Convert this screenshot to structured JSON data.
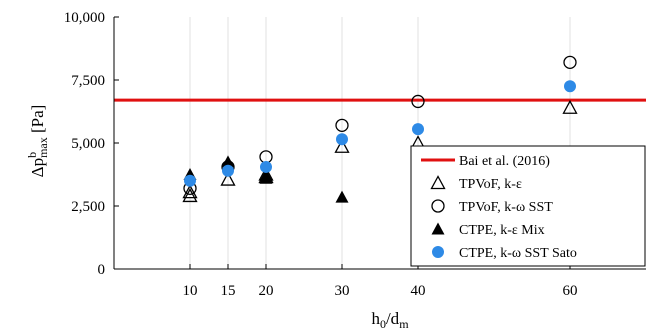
{
  "chart_data": {
    "type": "scatter",
    "xlabel": {
      "main": "h",
      "sub1": "0",
      "mid": "/d",
      "sub2": "m"
    },
    "ylabel": {
      "main": "Δp",
      "sup": "b",
      "sub": "max",
      "unit": " [Pa]"
    },
    "xlim": [
      0,
      70
    ],
    "ylim": [
      0,
      10000
    ],
    "x_ticks": [
      10,
      15,
      20,
      30,
      40,
      60
    ],
    "y_ticks": [
      0,
      2500,
      5000,
      7500,
      10000
    ],
    "y_tick_labels": [
      "0",
      "2,500",
      "5,000",
      "7,500",
      "10,000"
    ],
    "grid": "vertical",
    "legend_position": "bottom-right",
    "reference_lines": [
      {
        "name": "Bai et al. (2016)",
        "y": 6700,
        "color": "#e01010"
      }
    ],
    "series": [
      {
        "name": "TPVoF, k-ε",
        "marker": "triangle-open",
        "color": "#000000",
        "x": [
          10,
          10,
          15,
          20,
          20,
          30,
          40,
          60
        ],
        "y": [
          2900,
          3050,
          3550,
          3650,
          3750,
          4850,
          5000,
          6400
        ]
      },
      {
        "name": "TPVoF, k-ω SST",
        "marker": "circle-open",
        "color": "#000000",
        "x": [
          10,
          15,
          20,
          30,
          40,
          60
        ],
        "y": [
          3200,
          4050,
          4450,
          5700,
          6650,
          8200
        ]
      },
      {
        "name": "CTPE,  k-ε Mix",
        "marker": "triangle-filled",
        "color": "#000000",
        "x": [
          10,
          15,
          20,
          20,
          30
        ],
        "y": [
          3750,
          4250,
          3600,
          3700,
          2850
        ]
      },
      {
        "name": "CTPE,  k-ω SST Sato",
        "marker": "circle-filled",
        "color": "#2e8ae6",
        "x": [
          10,
          15,
          20,
          30,
          40,
          60
        ],
        "y": [
          3500,
          3900,
          4050,
          5150,
          5550,
          7250
        ]
      }
    ]
  }
}
